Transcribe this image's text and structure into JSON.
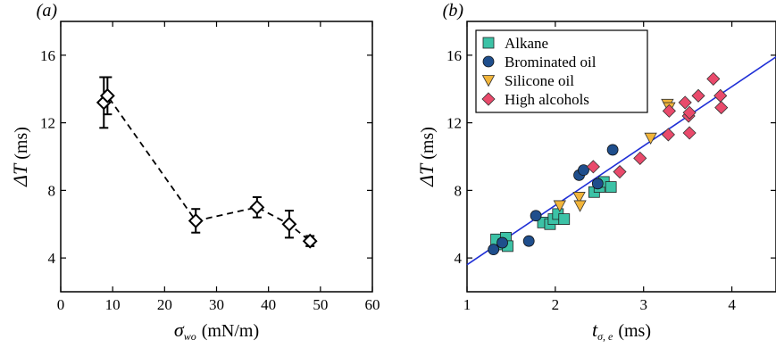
{
  "chart_data": [
    {
      "type": "line",
      "panel_label": "(a)",
      "xlabel": {
        "symbol": "σ",
        "subscript": "wo",
        "unit": "(mN/m)"
      },
      "ylabel": {
        "symbol": "ΔT",
        "unit": "(ms)"
      },
      "xlim": [
        0,
        60
      ],
      "ylim": [
        2,
        18
      ],
      "xticks": [
        0,
        10,
        20,
        30,
        40,
        50,
        60
      ],
      "yticks": [
        4,
        8,
        12,
        16
      ],
      "line_style": "dashed",
      "marker": "diamond-open",
      "points": [
        {
          "x": 8.3,
          "y": 13.2,
          "err": 1.5
        },
        {
          "x": 9.0,
          "y": 13.6,
          "err": 1.1
        },
        {
          "x": 26.0,
          "y": 6.2,
          "err": 0.7
        },
        {
          "x": 37.8,
          "y": 7.0,
          "err": 0.6
        },
        {
          "x": 44.0,
          "y": 6.0,
          "err": 0.8
        },
        {
          "x": 48.0,
          "y": 5.0,
          "err": 0.3
        }
      ]
    },
    {
      "type": "scatter",
      "panel_label": "(b)",
      "xlabel": {
        "symbol": "t",
        "subscript": "σ, e",
        "unit": "(ms)"
      },
      "ylabel": {
        "symbol": "ΔT",
        "unit": "(ms)"
      },
      "xlim": [
        1,
        4.5
      ],
      "ylim": [
        2,
        18
      ],
      "xticks": [
        1,
        2,
        3,
        4
      ],
      "yticks": [
        4,
        8,
        12,
        16
      ],
      "legend_position": "top-left",
      "fit_line": {
        "from": [
          1,
          3.6
        ],
        "to": [
          4.5,
          15.9
        ],
        "color": "#1f2fd6"
      },
      "series": [
        {
          "name": "Alkane",
          "marker": "square",
          "color": "#3cc2a6",
          "points": [
            [
              1.33,
              5.1
            ],
            [
              1.41,
              4.8
            ],
            [
              1.44,
              5.2
            ],
            [
              1.46,
              4.7
            ],
            [
              1.86,
              6.1
            ],
            [
              1.94,
              6.0
            ],
            [
              1.98,
              6.3
            ],
            [
              2.03,
              6.6
            ],
            [
              2.1,
              6.3
            ],
            [
              2.44,
              7.9
            ],
            [
              2.5,
              8.2
            ],
            [
              2.55,
              8.5
            ],
            [
              2.63,
              8.2
            ]
          ]
        },
        {
          "name": "Brominated oil",
          "marker": "circle",
          "color": "#1f4e8c",
          "points": [
            [
              1.3,
              4.5
            ],
            [
              1.4,
              4.9
            ],
            [
              1.7,
              5.0
            ],
            [
              1.78,
              6.5
            ],
            [
              2.27,
              8.9
            ],
            [
              2.32,
              9.2
            ],
            [
              2.48,
              8.4
            ],
            [
              2.65,
              10.4
            ]
          ]
        },
        {
          "name": "Silicone oil",
          "marker": "triangle-down",
          "color": "#f2b53a",
          "points": [
            [
              2.05,
              7.1
            ],
            [
              2.27,
              7.6
            ],
            [
              2.28,
              7.1
            ],
            [
              3.08,
              11.1
            ],
            [
              3.27,
              13.1
            ],
            [
              3.29,
              12.9
            ]
          ]
        },
        {
          "name": "High alcohols",
          "marker": "diamond",
          "color": "#e94a6b",
          "points": [
            [
              2.43,
              9.4
            ],
            [
              2.73,
              9.1
            ],
            [
              2.96,
              9.9
            ],
            [
              3.28,
              11.3
            ],
            [
              3.29,
              12.7
            ],
            [
              3.47,
              13.2
            ],
            [
              3.51,
              12.4
            ],
            [
              3.52,
              11.4
            ],
            [
              3.52,
              12.6
            ],
            [
              3.62,
              13.6
            ],
            [
              3.79,
              14.6
            ],
            [
              3.87,
              13.6
            ],
            [
              3.88,
              12.9
            ]
          ]
        }
      ]
    }
  ]
}
